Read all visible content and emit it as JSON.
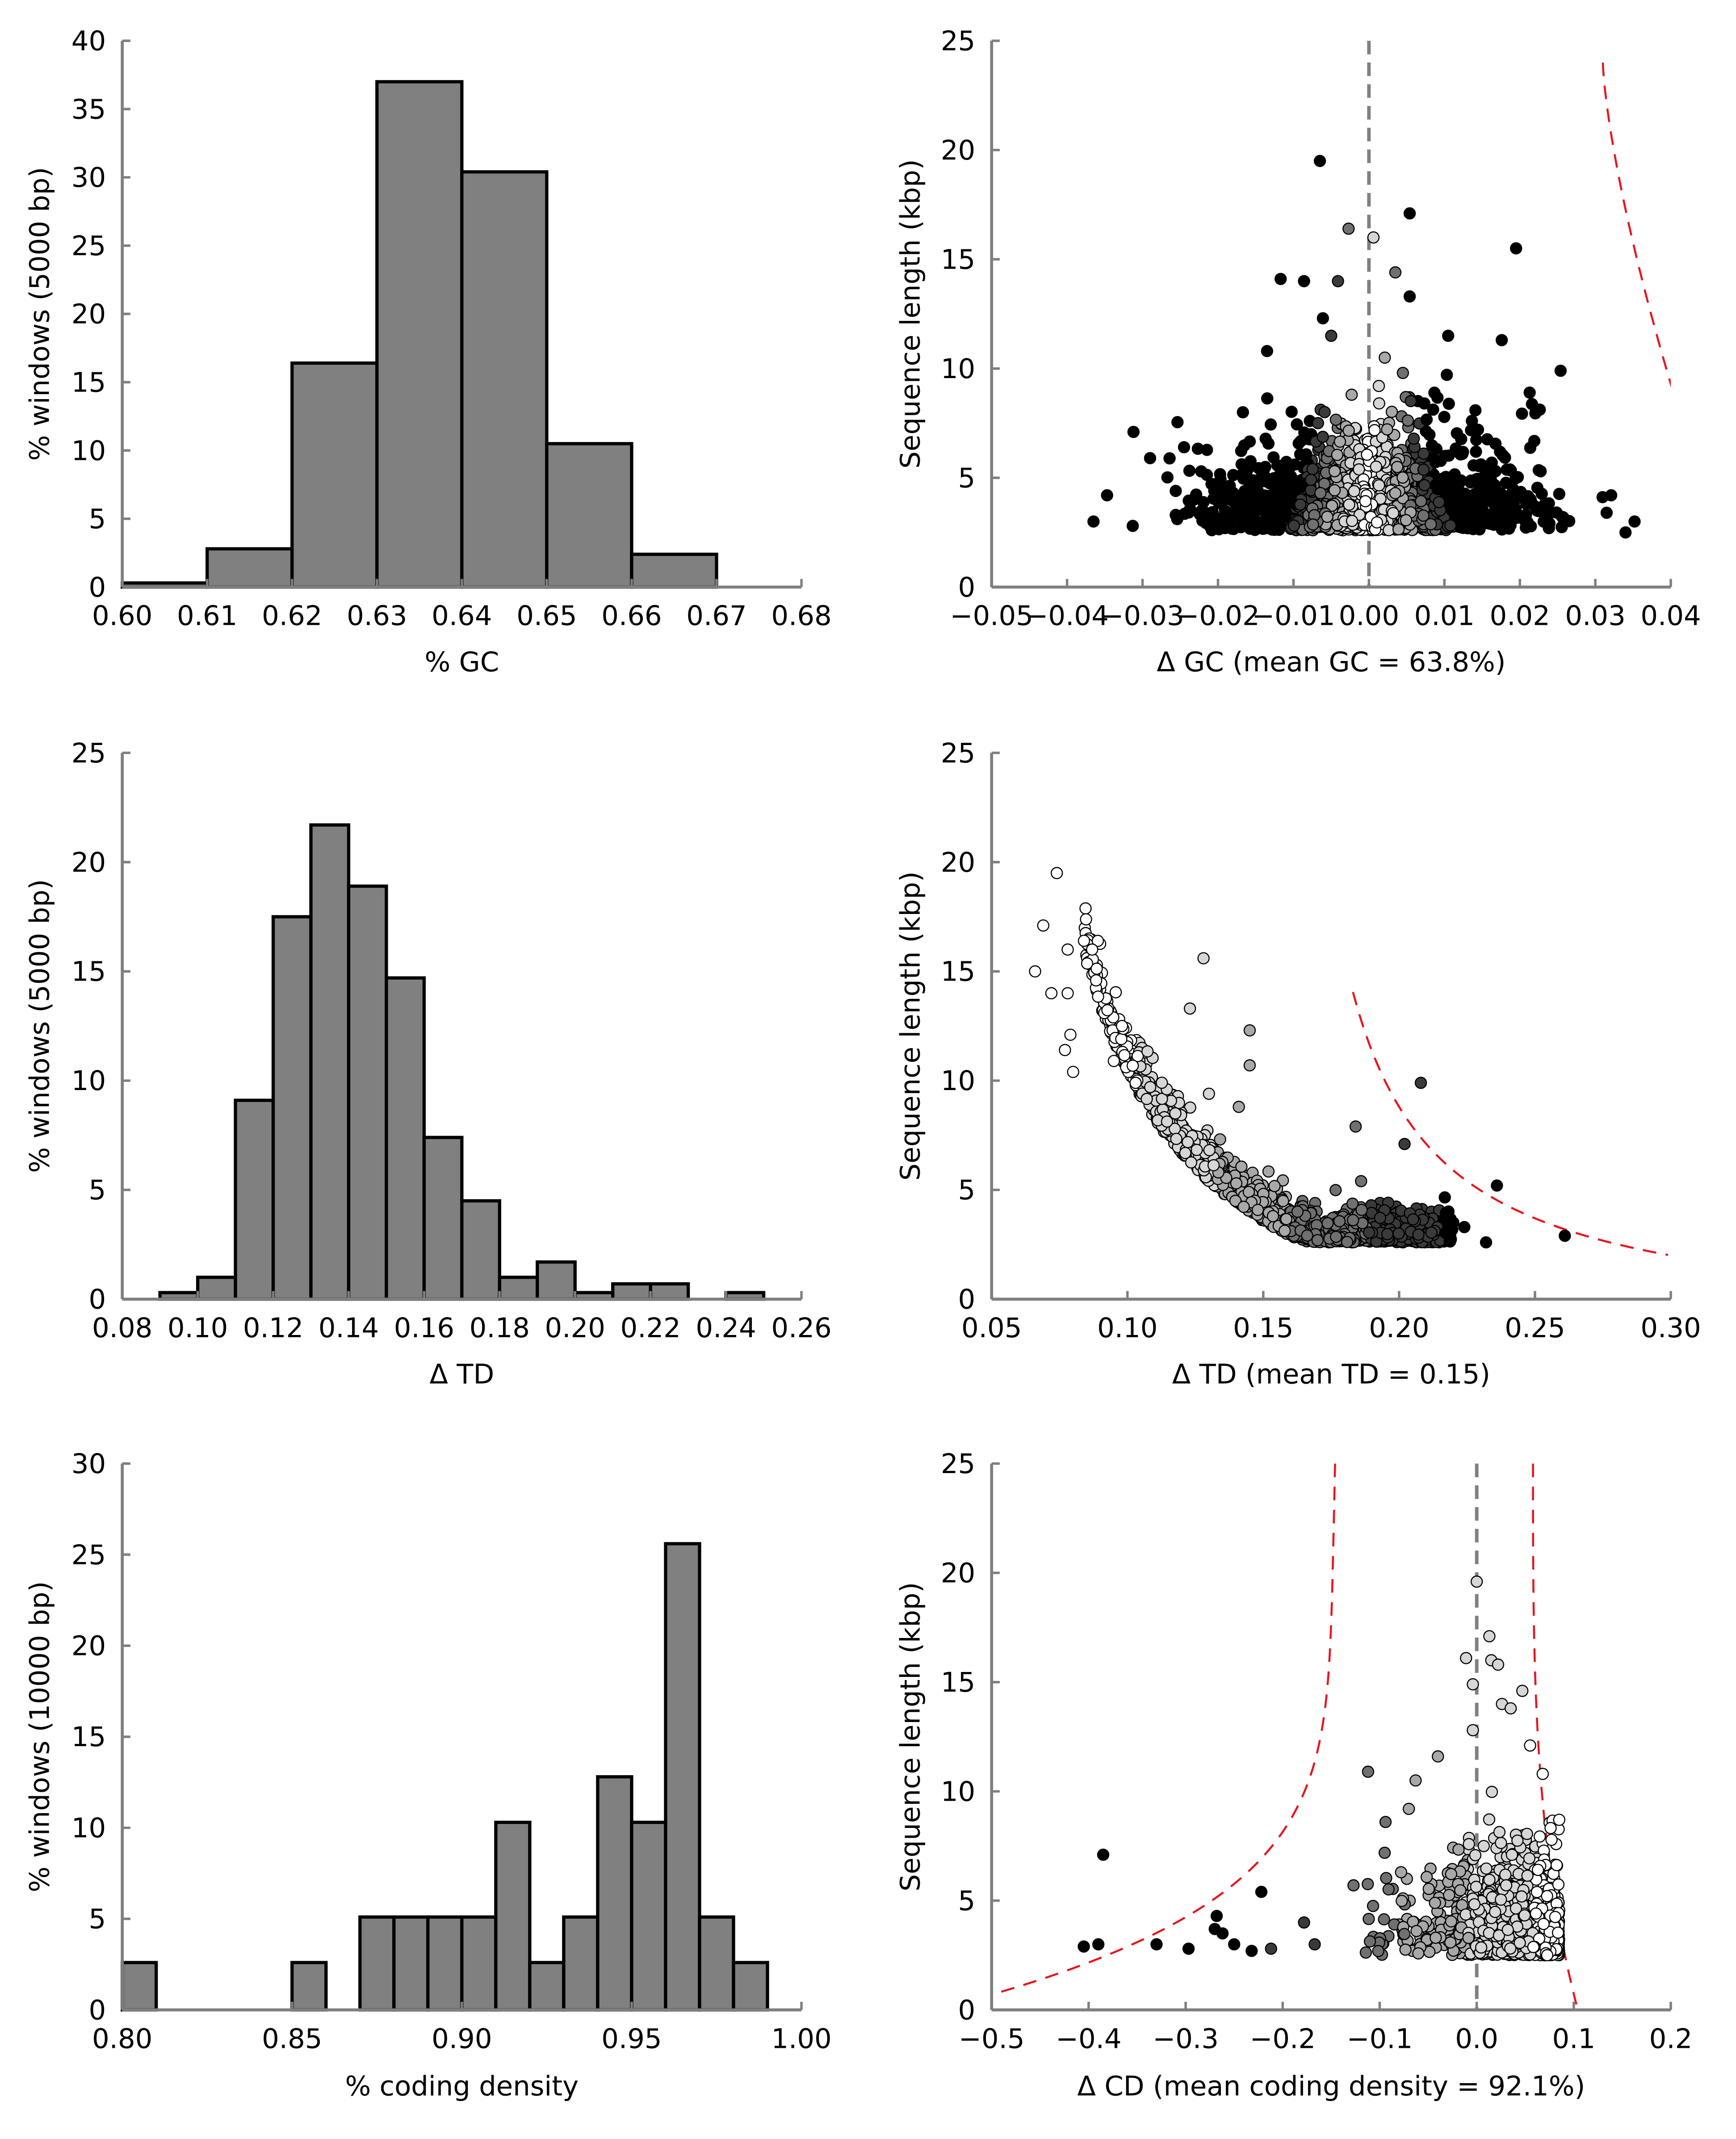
{
  "colors": {
    "bar_fill": "#808080",
    "bar_stroke": "#000000",
    "axis": "#7f7f7f",
    "vline": "#808080",
    "boundary": "#e8141c",
    "point_shades": [
      "#ffffff",
      "#d6d6d6",
      "#a8a8a8",
      "#707070",
      "#3a3a3a",
      "#000000"
    ]
  },
  "chart_data": [
    {
      "id": "hist-gc",
      "type": "bar",
      "xlabel": "% GC",
      "ylabel": "% windows (5000 bp)",
      "xlim": [
        0.6,
        0.68
      ],
      "ylim": [
        0,
        40
      ],
      "xticks": [
        "0.60",
        "0.61",
        "0.62",
        "0.63",
        "0.64",
        "0.65",
        "0.66",
        "0.67",
        "0.68"
      ],
      "yticks": [
        "0",
        "5",
        "10",
        "15",
        "20",
        "25",
        "30",
        "35",
        "40"
      ],
      "bin_edges": [
        0.6,
        0.61,
        0.62,
        0.63,
        0.64,
        0.65,
        0.66,
        0.67
      ],
      "values": [
        0.3,
        2.8,
        16.4,
        37.0,
        30.4,
        10.5,
        2.4
      ]
    },
    {
      "id": "scatter-gc",
      "type": "scatter",
      "xlabel": "Δ GC (mean GC = 63.8%)",
      "ylabel": "Sequence length (kbp)",
      "xlim": [
        -0.05,
        0.04
      ],
      "ylim": [
        0,
        25
      ],
      "xticks": [
        "−0.05",
        "−0.04",
        "−0.03",
        "−0.02",
        "−0.01",
        "0.00",
        "0.01",
        "0.02",
        "0.03",
        "0.04"
      ],
      "yticks": [
        "0",
        "5",
        "10",
        "15",
        "20",
        "25"
      ],
      "vline": 0.0,
      "boundary": {
        "type": "lower-right",
        "scale": 0.0096,
        "k": 0.5
      },
      "points": [
        [
          -0.0365,
          3.0
        ],
        [
          -0.0347,
          4.2
        ],
        [
          -0.0312,
          7.1
        ],
        [
          -0.0313,
          2.8
        ],
        [
          -0.029,
          5.9
        ],
        [
          -0.0256,
          3.3
        ],
        [
          -0.0245,
          6.4
        ],
        [
          -0.0232,
          4.0
        ],
        [
          -0.0065,
          19.5
        ],
        [
          -0.0027,
          16.4
        ],
        [
          0.0054,
          17.1
        ],
        [
          -0.0086,
          14.0
        ],
        [
          -0.0041,
          14.0
        ],
        [
          0.0006,
          16.0
        ],
        [
          0.0035,
          14.4
        ],
        [
          0.0195,
          15.5
        ],
        [
          -0.0117,
          14.1
        ],
        [
          -0.0061,
          12.3
        ],
        [
          -0.005,
          11.5
        ],
        [
          0.0105,
          11.5
        ],
        [
          0.0054,
          13.3
        ],
        [
          0.0045,
          9.8
        ],
        [
          0.0254,
          9.9
        ],
        [
          0.0176,
          11.3
        ],
        [
          0.0021,
          10.5
        ],
        [
          -0.0135,
          10.8
        ],
        [
          0.0213,
          8.9
        ],
        [
          0.0321,
          4.2
        ],
        [
          0.0352,
          3.0
        ],
        [
          0.0315,
          3.4
        ],
        [
          0.034,
          2.5
        ],
        [
          -0.0167,
          8.0
        ]
      ],
      "cloud": {
        "count": 1900,
        "x_center": 0.0,
        "x_spread": 0.0082,
        "y_min": 2.6,
        "y_mode": 3.4,
        "y_tail": 5.4,
        "x_max_sep": 0.034
      }
    },
    {
      "id": "hist-td",
      "type": "bar",
      "xlabel": "Δ TD",
      "ylabel": "% windows (5000 bp)",
      "xlim": [
        0.08,
        0.26
      ],
      "ylim": [
        0,
        25
      ],
      "xticks": [
        "0.08",
        "0.10",
        "0.12",
        "0.14",
        "0.16",
        "0.18",
        "0.20",
        "0.22",
        "0.24",
        "0.26"
      ],
      "yticks": [
        "0",
        "5",
        "10",
        "15",
        "20",
        "25"
      ],
      "bin_edges": [
        0.09,
        0.1,
        0.11,
        0.12,
        0.13,
        0.14,
        0.15,
        0.16,
        0.17,
        0.18,
        0.19,
        0.2,
        0.21,
        0.22,
        0.23,
        0.24,
        0.25
      ],
      "values": [
        0.3,
        1.0,
        9.1,
        17.5,
        21.7,
        18.9,
        14.7,
        7.4,
        4.5,
        1.0,
        1.7,
        0.3,
        0.7,
        0.7,
        0,
        0.3
      ]
    },
    {
      "id": "scatter-td",
      "type": "scatter",
      "xlabel": "Δ TD (mean TD = 0.15)",
      "ylabel": "Sequence length (kbp)",
      "xlim": [
        0.05,
        0.3
      ],
      "ylim": [
        0,
        25
      ],
      "xticks": [
        "0.05",
        "0.10",
        "0.15",
        "0.20",
        "0.25",
        "0.30"
      ],
      "yticks": [
        "0",
        "5",
        "10",
        "15",
        "20",
        "25"
      ],
      "boundary": {
        "type": "td",
        "x0": 0.183,
        "c": 0.51,
        "mean": 0.15
      },
      "points": [
        [
          0.074,
          19.5
        ],
        [
          0.069,
          17.1
        ],
        [
          0.066,
          15.0
        ],
        [
          0.078,
          16.0
        ],
        [
          0.084,
          16.4
        ],
        [
          0.087,
          16.0
        ],
        [
          0.072,
          14.0
        ],
        [
          0.078,
          14.0
        ],
        [
          0.079,
          12.1
        ],
        [
          0.077,
          11.4
        ],
        [
          0.08,
          10.4
        ],
        [
          0.128,
          15.6
        ],
        [
          0.123,
          13.3
        ],
        [
          0.145,
          12.3
        ],
        [
          0.145,
          10.7
        ],
        [
          0.208,
          9.9
        ],
        [
          0.236,
          5.2
        ],
        [
          0.261,
          2.9
        ],
        [
          0.232,
          2.6
        ],
        [
          0.202,
          7.1
        ],
        [
          0.184,
          7.9
        ],
        [
          0.186,
          5.4
        ],
        [
          0.224,
          3.3
        ],
        [
          0.141,
          8.8
        ],
        [
          0.13,
          9.4
        ],
        [
          0.103,
          9.9
        ],
        [
          0.095,
          10.9
        ],
        [
          0.098,
          12.5
        ]
      ],
      "cloud": {
        "count": 1500,
        "x_min": 0.083,
        "x_max": 0.22,
        "y_floor": 2.6,
        "c": 0.9,
        "jitter": 1.1
      }
    },
    {
      "id": "hist-cd",
      "type": "bar",
      "xlabel": "% coding density",
      "ylabel": "% windows (10000 bp)",
      "xlim": [
        0.8,
        1.0
      ],
      "ylim": [
        0,
        30
      ],
      "xticks": [
        "0.80",
        "0.85",
        "0.90",
        "0.95",
        "1.00"
      ],
      "yticks": [
        "0",
        "5",
        "10",
        "15",
        "20",
        "25",
        "30"
      ],
      "bin_edges": [
        0.8,
        0.81,
        0.82,
        0.83,
        0.84,
        0.85,
        0.86,
        0.87,
        0.88,
        0.89,
        0.9,
        0.91,
        0.92,
        0.93,
        0.94,
        0.95,
        0.96,
        0.97,
        0.98,
        0.99
      ],
      "values": [
        2.6,
        0,
        0,
        0,
        0,
        2.6,
        0,
        5.1,
        5.1,
        5.1,
        5.1,
        10.3,
        2.6,
        5.1,
        12.8,
        10.3,
        25.6,
        5.1,
        2.6
      ]
    },
    {
      "id": "scatter-cd",
      "type": "scatter",
      "xlabel": "Δ CD (mean coding density = 92.1%)",
      "ylabel": "Sequence length (kbp)",
      "xlim": [
        -0.5,
        0.2
      ],
      "ylim": [
        0,
        25
      ],
      "xticks": [
        "−0.5",
        "−0.4",
        "−0.3",
        "−0.2",
        "−0.1",
        "0.0",
        "0.1",
        "0.2"
      ],
      "yticks": [
        "0",
        "5",
        "10",
        "15",
        "20",
        "25"
      ],
      "vline": 0.0,
      "boundary": {
        "type": "cd",
        "left": -0.158,
        "right": 0.1,
        "k": 0.85
      },
      "points": [
        [
          -0.385,
          7.1
        ],
        [
          -0.405,
          2.9
        ],
        [
          -0.39,
          3.0
        ],
        [
          -0.33,
          3.0
        ],
        [
          -0.297,
          2.8
        ],
        [
          -0.268,
          4.3
        ],
        [
          -0.27,
          3.7
        ],
        [
          -0.262,
          3.5
        ],
        [
          -0.25,
          3.0
        ],
        [
          -0.232,
          2.7
        ],
        [
          -0.222,
          5.4
        ],
        [
          -0.212,
          2.8
        ],
        [
          -0.178,
          4.0
        ],
        [
          -0.167,
          3.0
        ],
        [
          -0.127,
          5.7
        ],
        [
          -0.112,
          10.9
        ],
        [
          -0.07,
          9.2
        ],
        [
          -0.094,
          8.6
        ],
        [
          0.0,
          19.6
        ],
        [
          0.013,
          17.1
        ],
        [
          -0.011,
          16.1
        ],
        [
          0.015,
          16.0
        ],
        [
          0.022,
          15.8
        ],
        [
          0.047,
          14.6
        ],
        [
          -0.004,
          14.9
        ],
        [
          0.026,
          14.0
        ],
        [
          0.035,
          13.8
        ],
        [
          -0.004,
          12.8
        ],
        [
          -0.04,
          11.6
        ],
        [
          -0.063,
          10.5
        ],
        [
          -0.072,
          6.0
        ],
        [
          -0.078,
          6.3
        ],
        [
          0.055,
          12.1
        ],
        [
          0.068,
          10.8
        ],
        [
          0.085,
          8.7
        ]
      ],
      "cloud": {
        "count": 1700,
        "x_max": 0.085,
        "y_min": 2.5,
        "y_mode": 3.6,
        "y_tail": 5.2
      }
    }
  ]
}
